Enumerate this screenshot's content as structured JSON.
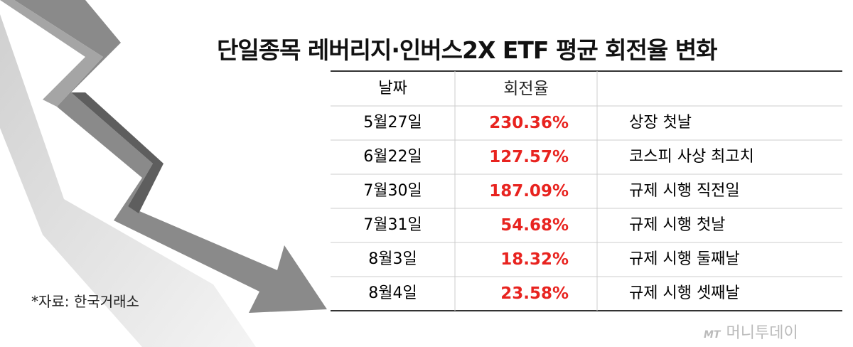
{
  "header": {
    "title": "단일종목 레버리지·인버스2X ETF 평균 회전율 변화"
  },
  "table": {
    "columns": [
      "날짜",
      "회전율"
    ],
    "rows": [
      [
        "5월27일",
        "230.36%",
        "상장 첫날"
      ],
      [
        "6월22일",
        "127.57%",
        "코스피 사상 최고치"
      ],
      [
        "7월30일",
        "187.09%",
        "규제 시행 직전일"
      ],
      [
        "7월31일",
        "54.68%",
        "규제 시행 첫날"
      ],
      [
        "8월3일",
        "18.32%",
        "규제 시행 둘째날"
      ],
      [
        "8월4일",
        "23.58%",
        "규제 시행 셋째날"
      ]
    ]
  },
  "source": "*자료: 한국거래소",
  "watermark": {
    "logo": "MT",
    "name": "머니투데이"
  }
}
